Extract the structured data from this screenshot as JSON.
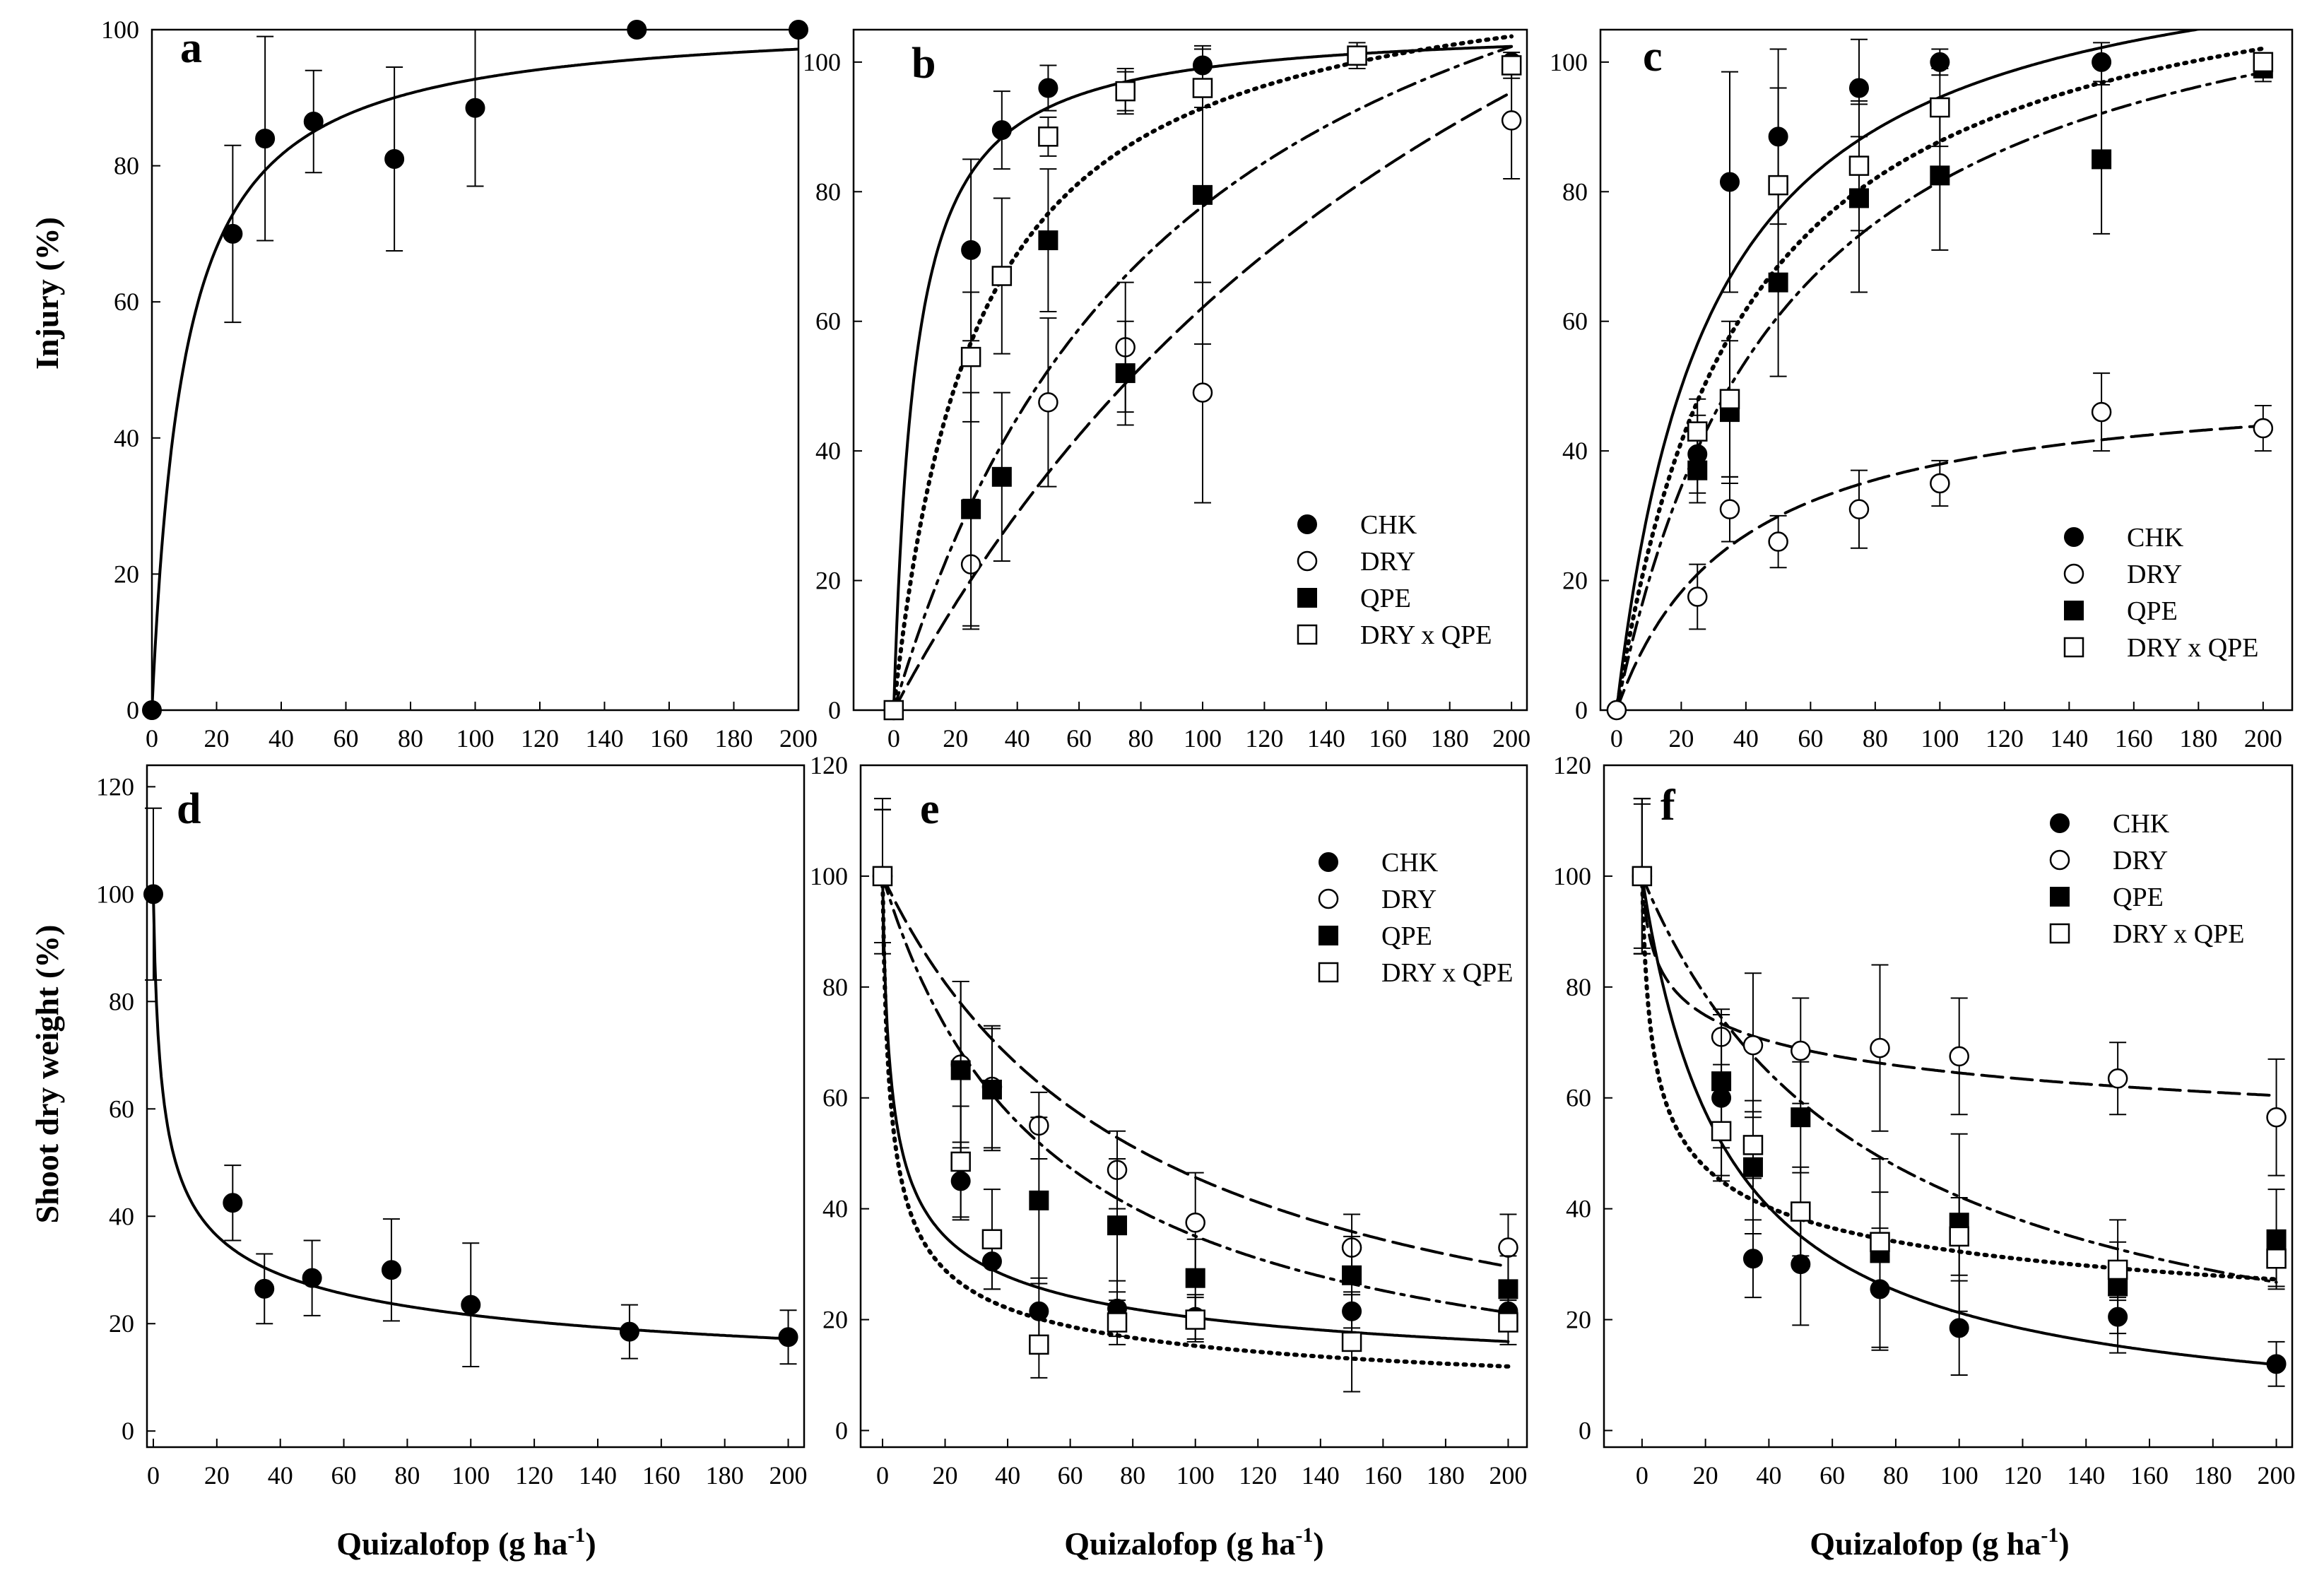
{
  "figure": {
    "y_label_top": "Injury (%)",
    "y_label_bottom": "Shoot dry weight (%)",
    "x_label": "Quizalofop (g ha",
    "x_label_sup": "-1",
    "x_label_end": ")"
  },
  "series_style": {
    "CHK": {
      "marker": "filled-circle",
      "line": "solid"
    },
    "DRY": {
      "marker": "open-circle",
      "line": "long-dash"
    },
    "QPE": {
      "marker": "filled-square",
      "line": "dash-dot"
    },
    "DRY x QPE": {
      "marker": "open-square",
      "line": "dotted"
    }
  },
  "chart_data": [
    {
      "panel": "a",
      "type": "scatter",
      "title": "a",
      "ylabel": "Injury (%)",
      "xlabel": "Quizalofop (g ha-1)",
      "xlim": [
        0,
        200
      ],
      "ylim": [
        0,
        100
      ],
      "xticks": [
        0,
        20,
        40,
        60,
        80,
        100,
        120,
        140,
        160,
        180,
        200
      ],
      "yticks": [
        0,
        20,
        40,
        60,
        80,
        100
      ],
      "legend": [],
      "series": [
        {
          "name": "CHK",
          "x": [
            0,
            25,
            35,
            50,
            75,
            100,
            150,
            200
          ],
          "y": [
            0,
            70,
            84,
            86.5,
            81,
            88.5,
            100,
            100
          ],
          "err": [
            0,
            13,
            15,
            7.5,
            13.5,
            11.5,
            0,
            0
          ],
          "fit": {
            "type": "hyperbolic",
            "a": 102,
            "b": 10
          }
        }
      ]
    },
    {
      "panel": "b",
      "type": "scatter",
      "title": "b",
      "ylabel": "Injury (%)",
      "xlabel": "Quizalofop (g ha-1)",
      "xlim": [
        0,
        200
      ],
      "ylim": [
        0,
        105
      ],
      "xticks": [
        0,
        20,
        40,
        60,
        80,
        100,
        120,
        140,
        160,
        180,
        200
      ],
      "yticks": [
        0,
        20,
        40,
        60,
        80,
        100
      ],
      "legend": [
        "CHK",
        "DRY",
        "QPE",
        "DRY x QPE"
      ],
      "legend_position": "bottom-right",
      "series": [
        {
          "name": "CHK",
          "x": [
            0,
            25,
            35,
            50,
            75,
            100,
            200
          ],
          "y": [
            0,
            71,
            89.5,
            96,
            95.5,
            99.5,
            100
          ],
          "err": [
            0,
            14,
            6,
            3.5,
            3.5,
            2.5,
            0
          ],
          "fit": {
            "type": "hyperbolic",
            "a": 106,
            "b": 7
          }
        },
        {
          "name": "DRY",
          "x": [
            0,
            25,
            50,
            75,
            100,
            200
          ],
          "y": [
            0,
            22.5,
            47.5,
            56,
            49,
            91
          ],
          "err": [
            0,
            10,
            13,
            10,
            17,
            9
          ],
          "fit": {
            "type": "hyperbolic",
            "a": 205,
            "b": 230
          }
        },
        {
          "name": "QPE",
          "x": [
            0,
            25,
            35,
            50,
            75,
            100,
            200
          ],
          "y": [
            0,
            31,
            36,
            72.5,
            52,
            79.5,
            99.5
          ],
          "err": [
            0,
            18,
            13,
            11,
            8,
            23,
            2
          ],
          "fit": {
            "type": "hyperbolic",
            "a": 150,
            "b": 93
          }
        },
        {
          "name": "DRY x QPE",
          "x": [
            0,
            25,
            35,
            50,
            75,
            100,
            150,
            200
          ],
          "y": [
            0,
            54.5,
            67,
            88.5,
            95.5,
            96,
            101,
            99.5
          ],
          "err": [
            0,
            10,
            12,
            3,
            3,
            3,
            2,
            1
          ],
          "fit": {
            "type": "hyperbolic",
            "a": 118,
            "b": 27
          }
        }
      ]
    },
    {
      "panel": "c",
      "type": "scatter",
      "title": "c",
      "ylabel": "Injury (%)",
      "xlabel": "Quizalofop (g ha-1)",
      "xlim": [
        0,
        200
      ],
      "ylim": [
        0,
        105
      ],
      "xticks": [
        0,
        20,
        40,
        60,
        80,
        100,
        120,
        140,
        160,
        180,
        200
      ],
      "yticks": [
        0,
        20,
        40,
        60,
        80,
        100
      ],
      "legend": [
        "CHK",
        "DRY",
        "QPE",
        "DRY x QPE"
      ],
      "legend_position": "bottom-right",
      "series": [
        {
          "name": "CHK",
          "x": [
            25,
            35,
            50,
            75,
            100,
            150
          ],
          "y": [
            39.5,
            81.5,
            88.5,
            96,
            100,
            100
          ],
          "err": [
            6,
            17,
            13.5,
            7.5,
            2,
            3
          ],
          "fit": {
            "type": "hyperbolic",
            "a": 122,
            "b": 29
          }
        },
        {
          "name": "DRY",
          "x": [
            0,
            25,
            35,
            50,
            75,
            100,
            150,
            200
          ],
          "y": [
            0,
            17.5,
            31,
            26,
            31,
            35,
            46,
            43.5
          ],
          "err": [
            0,
            5,
            5,
            4,
            6,
            3.5,
            6,
            3.5
          ],
          "fit": {
            "type": "hyperbolic",
            "a": 52,
            "b": 37
          }
        },
        {
          "name": "QPE",
          "x": [
            25,
            35,
            50,
            75,
            100,
            150,
            200
          ],
          "y": [
            37,
            46,
            66,
            79,
            82.5,
            85,
            99
          ],
          "err": [
            5,
            11,
            14.5,
            14.5,
            11.5,
            11.5,
            2
          ],
          "fit": {
            "type": "hyperbolic",
            "a": 124,
            "b": 52
          }
        },
        {
          "name": "DRY x QPE",
          "x": [
            25,
            35,
            50,
            75,
            100,
            200
          ],
          "y": [
            43,
            48,
            81,
            84,
            93,
            100
          ],
          "err": [
            5,
            12,
            15,
            10,
            6,
            1
          ],
          "fit": {
            "type": "hyperbolic",
            "a": 122,
            "b": 39
          }
        }
      ]
    },
    {
      "panel": "d",
      "type": "scatter",
      "title": "d",
      "ylabel": "Shoot dry weight (%)",
      "xlabel": "Quizalofop (g ha-1)",
      "xlim": [
        0,
        200
      ],
      "ylim": [
        0,
        120
      ],
      "xticks": [
        0,
        20,
        40,
        60,
        80,
        100,
        120,
        140,
        160,
        180,
        200
      ],
      "yticks": [
        0,
        20,
        40,
        60,
        80,
        100,
        120
      ],
      "legend": [],
      "series": [
        {
          "name": "CHK",
          "x": [
            0,
            25,
            35,
            50,
            75,
            100,
            150,
            200
          ],
          "y": [
            100,
            42.5,
            26.5,
            28.5,
            30,
            23.5,
            18.5,
            17.5
          ],
          "err": [
            16,
            7,
            6.5,
            7,
            9.5,
            11.5,
            5,
            5
          ],
          "fit": {
            "type": "power",
            "a": 100,
            "b": 0.332
          }
        }
      ]
    },
    {
      "panel": "e",
      "type": "scatter",
      "title": "e",
      "ylabel": "Shoot dry weight (%)",
      "xlabel": "Quizalofop (g ha-1)",
      "xlim": [
        0,
        200
      ],
      "ylim": [
        0,
        120
      ],
      "xticks": [
        0,
        20,
        40,
        60,
        80,
        100,
        120,
        140,
        160,
        180,
        200
      ],
      "yticks": [
        0,
        20,
        40,
        60,
        80,
        100,
        120
      ],
      "legend": [
        "CHK",
        "DRY",
        "QPE",
        "DRY x QPE"
      ],
      "legend_position": "top-right",
      "series": [
        {
          "name": "CHK",
          "x": [
            0,
            25,
            35,
            50,
            75,
            100,
            150,
            200
          ],
          "y": [
            100,
            45,
            30.5,
            21.5,
            22,
            20.5,
            21.5,
            21.5
          ],
          "err": [
            12,
            7,
            5,
            6,
            5,
            4,
            3,
            3
          ],
          "fit": {
            "type": "power",
            "a": 100,
            "b": 0.345
          }
        },
        {
          "name": "DRY",
          "x": [
            0,
            25,
            35,
            50,
            75,
            100,
            150,
            200
          ],
          "y": [
            100,
            66,
            62,
            55,
            47,
            37.5,
            33,
            33
          ],
          "err": [
            12,
            15,
            11,
            6,
            7,
            9,
            6,
            6
          ],
          "fit": {
            "type": "hyperbolic-decay",
            "a": 100,
            "b": 84
          }
        },
        {
          "name": "QPE",
          "x": [
            0,
            25,
            35,
            50,
            75,
            100,
            150,
            200
          ],
          "y": [
            100,
            65,
            61.5,
            41.5,
            37,
            27.5,
            28,
            25.5
          ],
          "err": [
            14,
            16,
            11,
            15,
            12,
            7,
            7,
            6
          ],
          "fit": {
            "type": "hyperbolic-decay",
            "a": 100,
            "b": 54
          }
        },
        {
          "name": "DRY x QPE",
          "x": [
            0,
            25,
            35,
            50,
            75,
            100,
            150,
            200
          ],
          "y": [
            100,
            48.5,
            34.5,
            15.5,
            19.5,
            20,
            16,
            19.5
          ],
          "err": [
            12,
            10,
            9,
            6,
            4,
            4,
            9,
            4
          ],
          "fit": {
            "type": "power",
            "a": 100,
            "b": 0.407
          }
        }
      ]
    },
    {
      "panel": "f",
      "type": "scatter",
      "title": "f",
      "ylabel": "Shoot dry weight (%)",
      "xlabel": "Quizalofop (g ha-1)",
      "xlim": [
        0,
        200
      ],
      "ylim": [
        0,
        120
      ],
      "xticks": [
        0,
        20,
        40,
        60,
        80,
        100,
        120,
        140,
        160,
        180,
        200
      ],
      "yticks": [
        0,
        20,
        40,
        60,
        80,
        100,
        120
      ],
      "legend": [
        "CHK",
        "DRY",
        "QPE",
        "DRY x QPE"
      ],
      "legend_position": "top-right",
      "series": [
        {
          "name": "CHK",
          "x": [
            0,
            25,
            35,
            50,
            75,
            100,
            150,
            200
          ],
          "y": [
            100,
            60,
            31,
            30,
            25.5,
            18.5,
            20.5,
            12
          ],
          "err": [
            14,
            15,
            7,
            11,
            11,
            8.5,
            3,
            4
          ],
          "fit": {
            "type": "hyperbolic-decay",
            "a": 100,
            "b": 27
          }
        },
        {
          "name": "DRY",
          "x": [
            0,
            25,
            35,
            50,
            75,
            100,
            150,
            200
          ],
          "y": [
            100,
            71,
            69.5,
            68.5,
            69,
            67.5,
            63.5,
            56.5
          ],
          "err": [
            13,
            5,
            13,
            9.5,
            15,
            10.5,
            6.5,
            10.5
          ],
          "fit": {
            "type": "power",
            "a": 100,
            "b": 0.095
          }
        },
        {
          "name": "QPE",
          "x": [
            0,
            25,
            35,
            50,
            75,
            100,
            150,
            200
          ],
          "y": [
            100,
            63,
            47.5,
            56.5,
            32,
            37.5,
            26,
            34.5
          ],
          "err": [
            14,
            12,
            12,
            10,
            17,
            16,
            12,
            9
          ],
          "fit": {
            "type": "hyperbolic-decay",
            "a": 100,
            "b": 73
          }
        },
        {
          "name": "DRY x QPE",
          "x": [
            0,
            25,
            35,
            50,
            75,
            100,
            150,
            200
          ],
          "y": [
            100,
            54,
            51.5,
            39.5,
            34,
            35,
            29,
            31
          ],
          "err": [
            14,
            8,
            6,
            8,
            9,
            7,
            5,
            5
          ],
          "fit": {
            "type": "power",
            "a": 100,
            "b": 0.245
          }
        }
      ]
    }
  ]
}
